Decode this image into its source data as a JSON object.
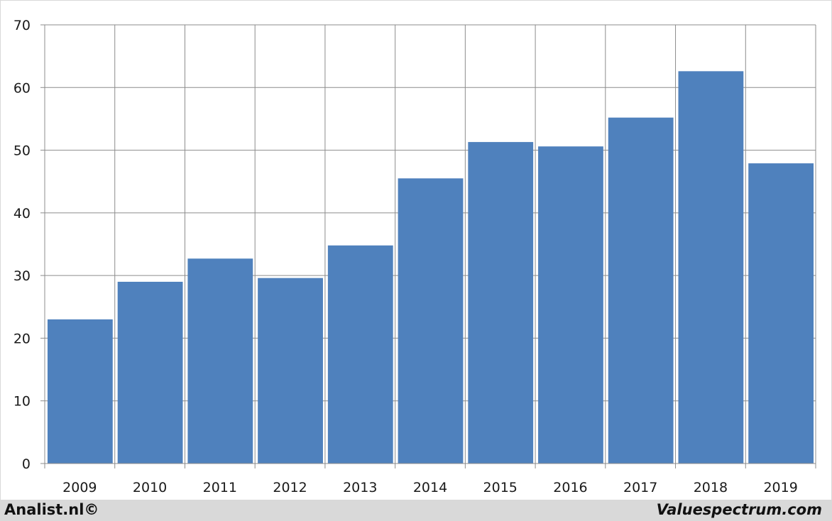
{
  "chart_data": {
    "type": "bar",
    "categories": [
      "2009",
      "2010",
      "2011",
      "2012",
      "2013",
      "2014",
      "2015",
      "2016",
      "2017",
      "2018",
      "2019"
    ],
    "values": [
      23.0,
      29.0,
      32.7,
      29.6,
      34.8,
      45.5,
      51.3,
      50.6,
      55.2,
      62.6,
      47.9
    ],
    "title": "",
    "xlabel": "",
    "ylabel": "",
    "ylim": [
      0,
      70
    ],
    "yticks": [
      0,
      10,
      20,
      30,
      40,
      50,
      60,
      70
    ],
    "grid": true,
    "legend": "none",
    "bar_color": "#4f81bd",
    "grid_color": "#8c8c8c"
  },
  "footer": {
    "left_text": "Analist.nl©",
    "right_text": "Valuespectrum.com",
    "background": "#d9d9d9"
  }
}
